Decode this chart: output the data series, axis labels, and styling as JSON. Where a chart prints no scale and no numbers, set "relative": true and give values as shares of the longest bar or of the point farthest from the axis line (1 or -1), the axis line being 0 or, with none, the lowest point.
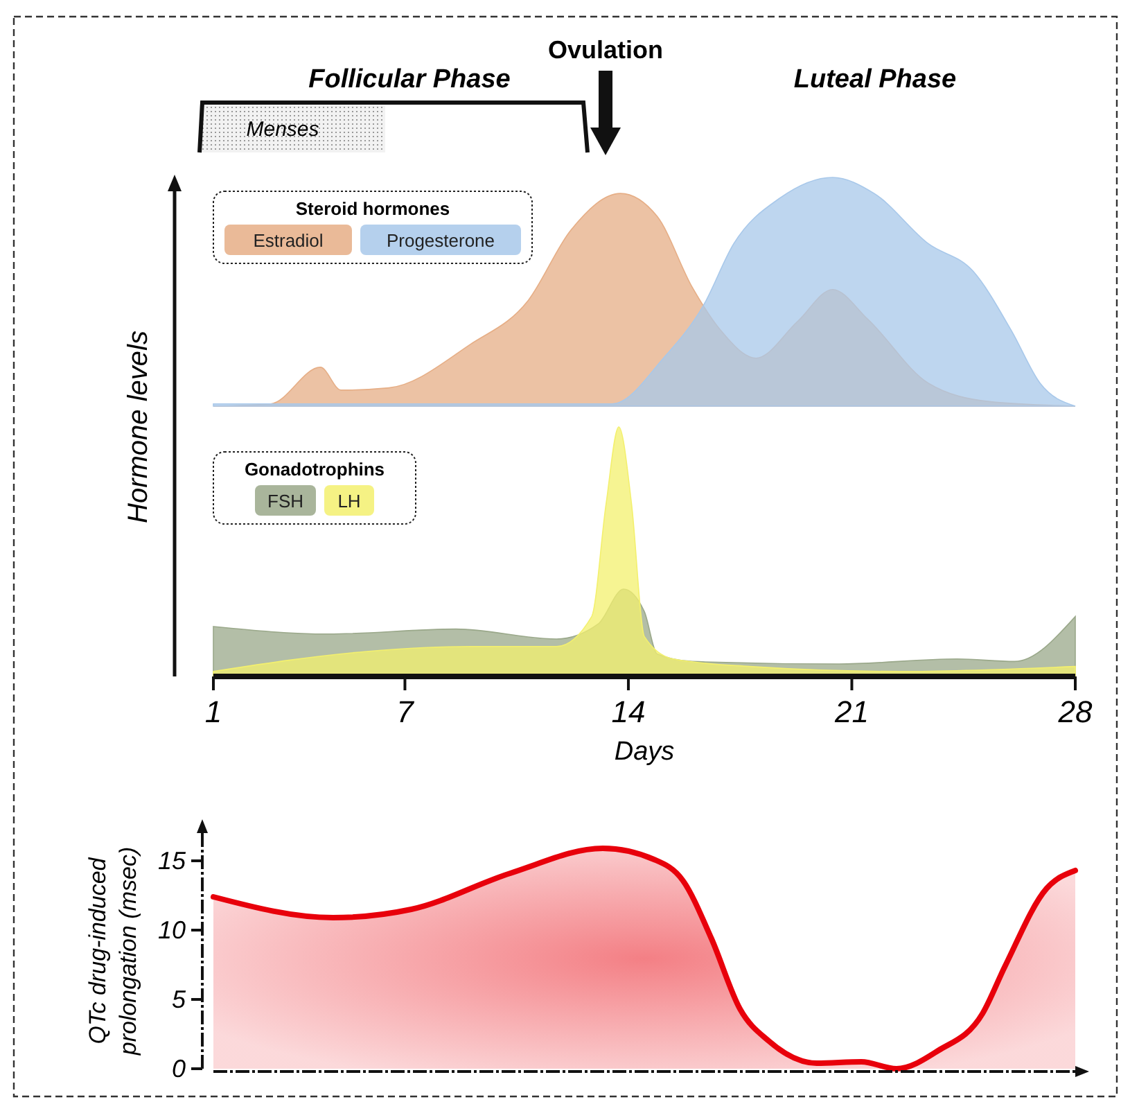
{
  "chart_data": [
    {
      "type": "area",
      "relative": true,
      "legend_title": "Steroid hormones",
      "legend": "top left",
      "ylabel": "Hormone levels",
      "xlim": [
        1,
        28
      ],
      "tick_labels": false,
      "annotations": [
        "Follicular Phase",
        "Luteal Phase",
        "Ovulation",
        "Menses"
      ],
      "series": [
        {
          "name": "Estradiol",
          "color": "#e6ae86",
          "x": [
            1,
            2.8,
            4.35,
            5.0,
            6.5,
            9.05,
            10.85,
            12.2,
            13.75,
            14.9,
            16.0,
            16.9,
            18.0,
            19.3,
            20.4,
            21.5,
            23.4,
            25.3,
            28
          ],
          "values": [
            0,
            0.01,
            0.17,
            0.07,
            0.08,
            0.27,
            0.46,
            0.77,
            0.93,
            0.83,
            0.52,
            0.33,
            0.21,
            0.37,
            0.51,
            0.38,
            0.1,
            0.02,
            0
          ]
        },
        {
          "name": "Progesterone",
          "color": "#a8c8ea",
          "x": [
            1,
            13.5,
            15.1,
            16.35,
            17.3,
            18.75,
            20.4,
            21.7,
            23.4,
            24.8,
            26.0,
            26.9,
            28
          ],
          "values": [
            0.01,
            0.01,
            0.21,
            0.44,
            0.71,
            0.91,
            1.0,
            0.93,
            0.71,
            0.59,
            0.33,
            0.1,
            0
          ]
        }
      ]
    },
    {
      "type": "area",
      "relative": true,
      "legend_title": "Gonadotrophins",
      "legend": "top left",
      "xlabel": "Days",
      "xlim": [
        1,
        28
      ],
      "xticks": [
        1,
        7,
        14,
        21,
        28
      ],
      "tick_labels": "x",
      "series": [
        {
          "name": "FSH",
          "color": "#9aa88a",
          "x": [
            1,
            4.6,
            8.6,
            11.75,
            13.05,
            13.85,
            14.5,
            14.9,
            16.0,
            20.6,
            24.3,
            26.1,
            28
          ],
          "values": [
            0.2,
            0.17,
            0.19,
            0.15,
            0.21,
            0.35,
            0.26,
            0.09,
            0.06,
            0.05,
            0.07,
            0.06,
            0.24
          ]
        },
        {
          "name": "LH",
          "color": "#f3f06e",
          "x": [
            1,
            5.8,
            9.05,
            11.75,
            12.85,
            13.3,
            13.7,
            14.1,
            14.5,
            15.4,
            17.8,
            22.5,
            28
          ],
          "values": [
            0.02,
            0.1,
            0.12,
            0.12,
            0.24,
            0.69,
            1.0,
            0.69,
            0.16,
            0.07,
            0.04,
            0.02,
            0.04
          ]
        }
      ]
    },
    {
      "type": "area",
      "ylabel": "QTc drug-induced prolongation (msec)",
      "xlim": [
        1,
        28
      ],
      "ylim": [
        0,
        17
      ],
      "yticks": [
        0,
        5,
        10,
        15
      ],
      "tick_labels": "y",
      "series": [
        {
          "color": "#e8000b",
          "x": [
            1,
            4.75,
            7.2,
            10.3,
            13.2,
            14.8,
            15.7,
            16.6,
            17.5,
            18.4,
            19.9,
            21.3,
            22.4,
            23.7,
            25.1,
            25.8,
            27.1,
            28
          ],
          "values": [
            12.4,
            10.9,
            11.5,
            14.1,
            15.9,
            15.1,
            13.6,
            9.4,
            4.3,
            2.0,
            0.4,
            0.5,
            0,
            1.3,
            4.0,
            7.4,
            13.0,
            14.3
          ]
        }
      ]
    }
  ]
}
